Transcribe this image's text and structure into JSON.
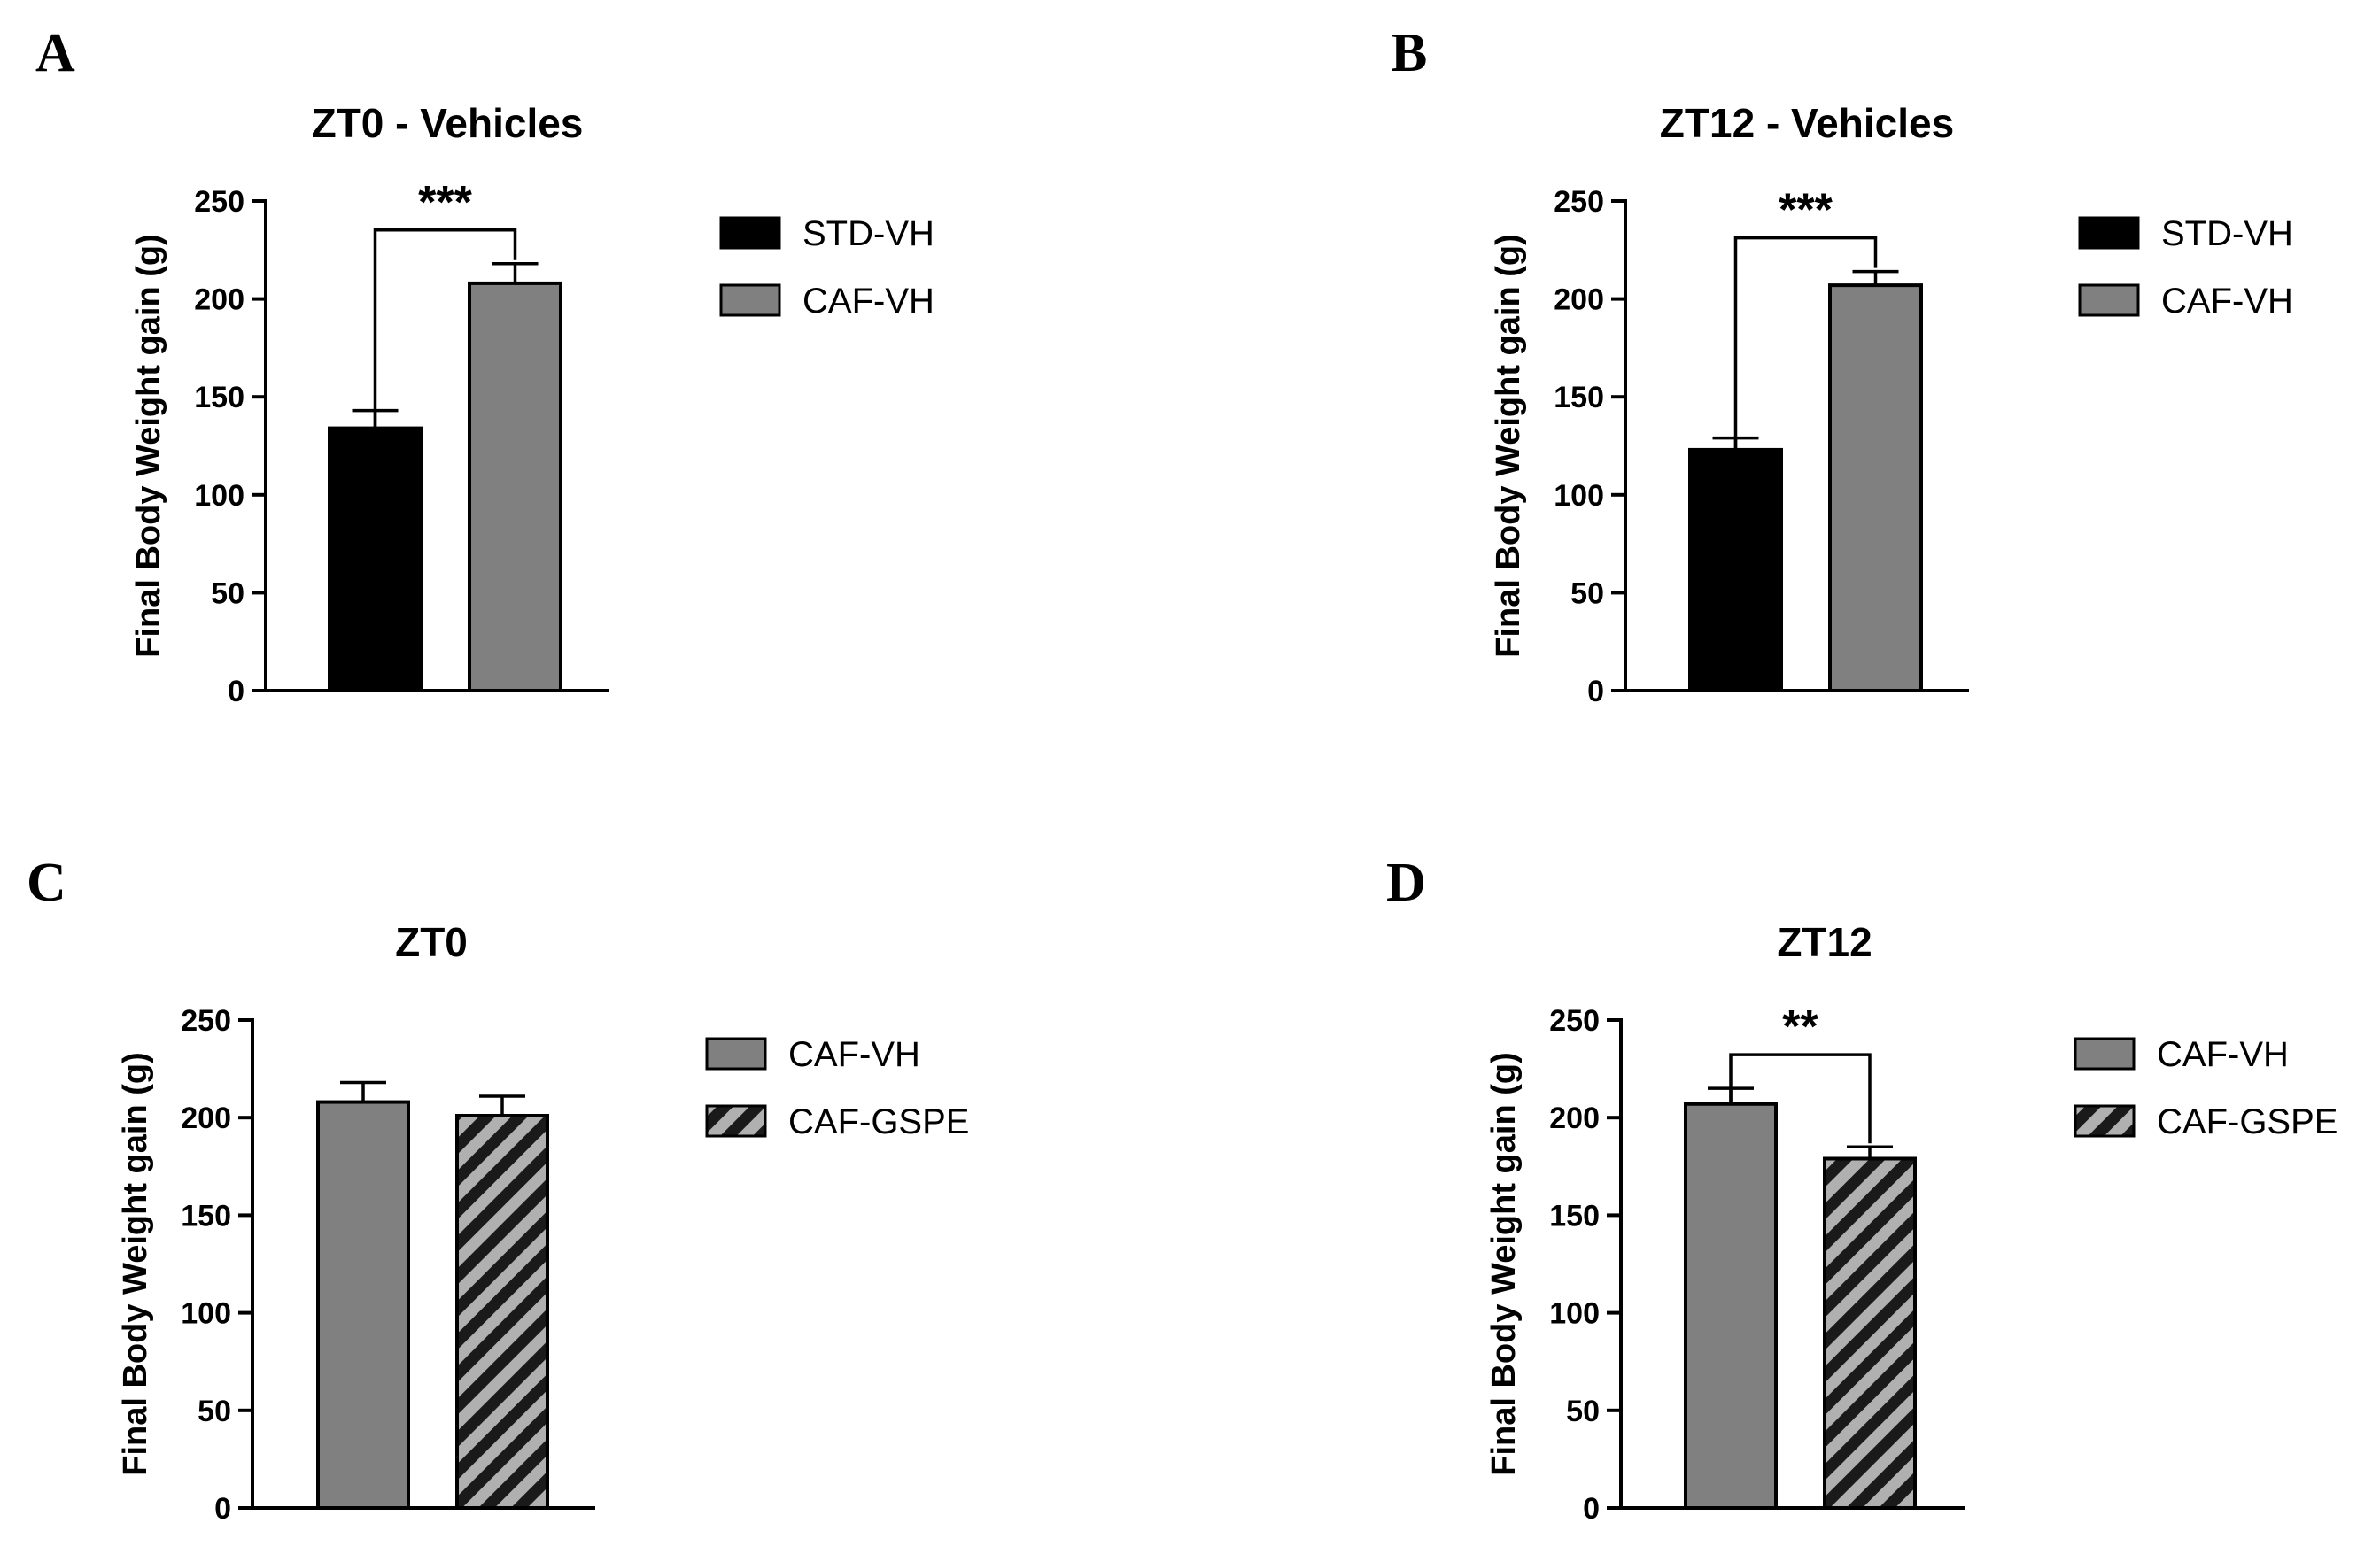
{
  "colors": {
    "black": "#000000",
    "gray": "#808080",
    "hatch_bg": "#b0b0b0"
  },
  "chart_data": [
    {
      "panel": "A",
      "type": "bar",
      "title": "ZT0 - Vehicles",
      "ylabel": "Final Body Weight gain (g)",
      "ylim": [
        0,
        250
      ],
      "yticks": [
        "0",
        "50",
        "100",
        "150",
        "200",
        "250"
      ],
      "series": [
        {
          "name": "STD-VH",
          "value": 134,
          "error": 9,
          "fill": "black"
        },
        {
          "name": "CAF-VH",
          "value": 208,
          "error": 10,
          "fill": "gray"
        }
      ],
      "legend": [
        "STD-VH",
        "CAF-VH"
      ],
      "significance": {
        "label": "***",
        "between": [
          0,
          1
        ]
      }
    },
    {
      "panel": "B",
      "type": "bar",
      "title": "ZT12 - Vehicles",
      "ylabel": "Final Body Weight gain (g)",
      "ylim": [
        0,
        250
      ],
      "yticks": [
        "0",
        "50",
        "100",
        "150",
        "200",
        "250"
      ],
      "series": [
        {
          "name": "STD-VH",
          "value": 123,
          "error": 6,
          "fill": "black"
        },
        {
          "name": "CAF-VH",
          "value": 207,
          "error": 7,
          "fill": "gray"
        }
      ],
      "legend": [
        "STD-VH",
        "CAF-VH"
      ],
      "significance": {
        "label": "***",
        "between": [
          0,
          1
        ]
      }
    },
    {
      "panel": "C",
      "type": "bar",
      "title": "ZT0",
      "ylabel": "Final Body Weight gain (g)",
      "ylim": [
        0,
        250
      ],
      "yticks": [
        "0",
        "50",
        "100",
        "150",
        "200",
        "250"
      ],
      "series": [
        {
          "name": "CAF-VH",
          "value": 208,
          "error": 10,
          "fill": "gray"
        },
        {
          "name": "CAF-GSPE",
          "value": 201,
          "error": 10,
          "fill": "hatch"
        }
      ],
      "legend": [
        "CAF-VH",
        "CAF-GSPE"
      ],
      "significance": null
    },
    {
      "panel": "D",
      "type": "bar",
      "title": "ZT12",
      "ylabel": "Final Body Weight gain (g)",
      "ylim": [
        0,
        250
      ],
      "yticks": [
        "0",
        "50",
        "100",
        "150",
        "200",
        "250"
      ],
      "series": [
        {
          "name": "CAF-VH",
          "value": 207,
          "error": 8,
          "fill": "gray"
        },
        {
          "name": "CAF-GSPE",
          "value": 179,
          "error": 6,
          "fill": "hatch"
        }
      ],
      "legend": [
        "CAF-VH",
        "CAF-GSPE"
      ],
      "significance": {
        "label": "**",
        "between": [
          0,
          1
        ]
      }
    }
  ]
}
